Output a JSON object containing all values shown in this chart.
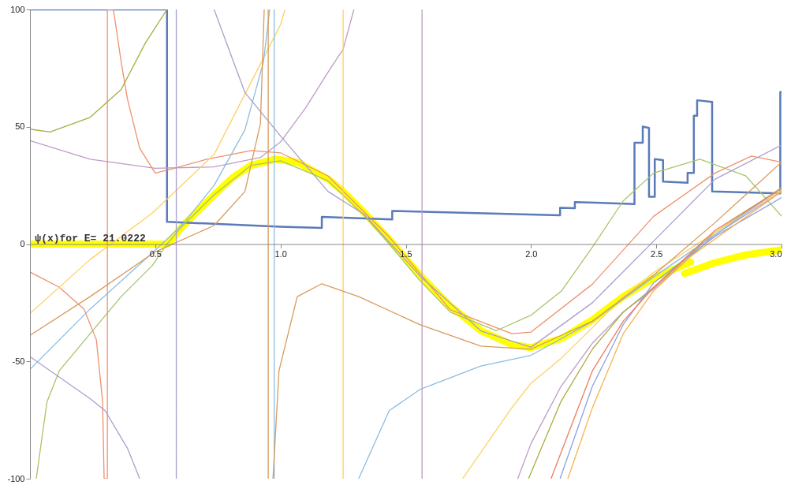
{
  "chart_data": {
    "type": "line",
    "xlim": [
      0,
      3
    ],
    "ylim": [
      -100,
      100
    ],
    "xticks": [
      0.5,
      {
        "value": 1,
        "label": "1.0"
      },
      1.5,
      {
        "value": 2,
        "label": "2.0"
      },
      2.5,
      {
        "value": 3,
        "label": "3.0"
      }
    ],
    "yticks": [
      -100,
      -50,
      0,
      50,
      100
    ],
    "grid": false,
    "annotations": [
      {
        "text": "ψ(x)for E= 21.0222",
        "x": 0.02,
        "y": 0
      }
    ],
    "series": [
      {
        "color": "#ffff00",
        "x": [
          0,
          0.547,
          0.562,
          0.611,
          0.673,
          0.735,
          0.809,
          0.883,
          0.98,
          1.067,
          1.19,
          1.25,
          1.336,
          1.434,
          1.556,
          1.678,
          1.8,
          1.923,
          2.0,
          2.123,
          2.245,
          2.368,
          2.49,
          2.637
        ],
        "values": [
          0,
          0,
          1.3,
          7.9,
          14.5,
          21,
          28.3,
          33.6,
          36.2,
          34.9,
          27.7,
          22.4,
          13.2,
          2,
          -13.2,
          -26.4,
          -36.9,
          -42.8,
          -44.1,
          -40.2,
          -32.3,
          -22.4,
          -14.5,
          -7.6
        ]
      },
      {
        "color": "#ffff00",
        "x": [
          2.613,
          2.735,
          2.858,
          3.0
        ],
        "values": [
          -12.5,
          -7.9,
          -4.6,
          -2.4
        ]
      },
      {
        "color": "#5a7bb8",
        "x": [
          0,
          0.547,
          0.547,
          1.0,
          1.165,
          1.165,
          1.446,
          1.446,
          2.116,
          2.116,
          2.175,
          2.175,
          2.413,
          2.413,
          2.446,
          2.446,
          2.471,
          2.471,
          2.494,
          2.494,
          2.527,
          2.527,
          2.625,
          2.625,
          2.65,
          2.65,
          2.663,
          2.663,
          2.723,
          2.723,
          2.995,
          2.995,
          3.0
        ],
        "values": [
          100,
          100,
          9.5,
          7.4,
          6.9,
          11.6,
          10.5,
          14.1,
          12.3,
          15.5,
          15.3,
          17.9,
          17.1,
          43.2,
          43.2,
          50.1,
          49.5,
          20.2,
          20.2,
          36.2,
          35.8,
          26.6,
          26.1,
          30.3,
          30.3,
          54.7,
          54.7,
          61.3,
          60.6,
          22.4,
          21.6,
          64.8,
          64.8
        ]
      },
      {
        "color": "#f0906c",
        "x": [
          0,
          0.117,
          0.216,
          0.265,
          0.29,
          0.296,
          0.309,
          0.309,
          0.333,
          0.364,
          0.389,
          0.438,
          0.5,
          0.562,
          0.7,
          0.883,
          1.0,
          1.19,
          1.434,
          1.678,
          1.923,
          2.0,
          2.245,
          2.49,
          2.735,
          2.88,
          3.0
        ],
        "values": [
          -11.9,
          -18.4,
          -27.7,
          -40.8,
          -67.2,
          -100,
          -100,
          100,
          100,
          77.7,
          61.9,
          40.8,
          30.3,
          31.9,
          36,
          39.9,
          38.9,
          29,
          3,
          -28,
          -38.2,
          -37.5,
          -17.1,
          11.9,
          30.3,
          37.5,
          34.9
        ]
      },
      {
        "color": "#c09ac8",
        "x": [
          0,
          0.24,
          0.5,
          0.735,
          0.92,
          1.0,
          1.1,
          1.2,
          1.25,
          1.293,
          1.4,
          1.565,
          1.565,
          1.7,
          1.947,
          2.0,
          2.12,
          2.245,
          2.368,
          2.49,
          2.735,
          3.0
        ],
        "values": [
          44.1,
          36.2,
          32.3,
          32.9,
          36.9,
          43.5,
          58,
          75,
          83,
          100,
          null,
          100,
          -100,
          null,
          -100,
          -85,
          -60.6,
          -42.2,
          -29,
          -19.1,
          4,
          22.4
        ]
      },
      {
        "color": "#a8ad40",
        "x": [
          0,
          0.08,
          0.24,
          0.364,
          0.46,
          0.547,
          1.5,
          1.99,
          2.12,
          2.245,
          2.368,
          2.49,
          2.735,
          3.0
        ],
        "values": [
          49,
          47.8,
          54,
          65.9,
          85.6,
          100,
          null,
          -100,
          -67,
          -44.8,
          -29,
          -18.4,
          5,
          24
        ]
      },
      {
        "color": "#a8c46a",
        "x": [
          0.025,
          0.068,
          0.117,
          0.24,
          0.364,
          0.488,
          0.547,
          0.611,
          0.735,
          0.883,
          1.0,
          1.19,
          1.336,
          1.434,
          1.556,
          1.678,
          1.862,
          2.0,
          2.123,
          2.245,
          2.368,
          2.49,
          2.674,
          2.858,
          3.0
        ],
        "values": [
          -100,
          -67.2,
          -54,
          -38.2,
          -22.4,
          -9.2,
          0,
          8,
          21,
          33.6,
          35.5,
          27,
          12,
          0,
          -15.5,
          -29,
          -36.9,
          -30.3,
          -19.8,
          -1.3,
          18.4,
          30.3,
          36.2,
          29,
          11.9
        ]
      },
      {
        "color": "#ffd060",
        "x": [
          0,
          0.24,
          0.488,
          0.735,
          1.0,
          1.018,
          1.1,
          1.25,
          1.25,
          1.5,
          1.727,
          1.923,
          2.0,
          2.12,
          2.245,
          2.368,
          2.49,
          2.735,
          3.0
        ],
        "values": [
          -29.6,
          -6.6,
          13.2,
          38.2,
          93.5,
          100,
          null,
          100,
          -100,
          null,
          -100,
          -69.8,
          -59.3,
          -48.7,
          -35.6,
          -22.4,
          -12,
          5,
          23
        ]
      },
      {
        "color": "#8dbde0",
        "x": [
          0,
          0.24,
          0.5,
          0.611,
          0.735,
          0.858,
          0.932,
          0.957,
          0.966,
          0.975,
          0.975,
          1.1,
          1.312,
          1.434,
          1.556,
          1.8,
          2.0,
          2.245,
          2.49,
          2.735,
          3.0
        ],
        "values": [
          -53.4,
          -27.7,
          -2.6,
          8.6,
          25,
          48.7,
          77.7,
          100,
          null,
          100,
          -100,
          null,
          -100,
          -71,
          -62,
          -52,
          -47.4,
          -33,
          -14,
          4,
          24
        ]
      },
      {
        "color": "#d89a5a",
        "x": [
          0,
          0.24,
          0.5,
          0.735,
          0.858,
          0.92,
          0.935,
          0.943,
          0.951,
          0.951,
          0.96,
          0.97,
          0.994,
          1.067,
          1.165,
          1.312,
          1.556,
          1.8,
          2.0,
          2.245,
          2.49,
          2.735,
          3.0
        ],
        "values": [
          -38.9,
          -22.4,
          -3.3,
          7.9,
          22.4,
          51.4,
          100,
          null,
          100,
          -100,
          null,
          -100,
          -54,
          -22.4,
          -16.9,
          -22.4,
          -34.3,
          -43.5,
          -44.8,
          -32.9,
          -13.2,
          9.2,
          34.9
        ]
      },
      {
        "color": "#a99fcc",
        "x": [
          0,
          0.24,
          0.3,
          0.389,
          0.438,
          0.5,
          0.584,
          0.584,
          0.65,
          0.735,
          0.858,
          1.0,
          1.19,
          1.336,
          1.556,
          1.8,
          2.0,
          2.245,
          2.49,
          2.735,
          3.0
        ],
        "values": [
          -48,
          -65.9,
          -71,
          -87,
          -100,
          null,
          -100,
          100,
          null,
          100,
          64.6,
          46.1,
          22.4,
          12.5,
          -13.5,
          -37,
          -44,
          -25,
          1.3,
          27.7,
          42.2
        ]
      },
      {
        "color": "#8aa2e4",
        "x": [
          2.116,
          2.245,
          2.368,
          2.49,
          2.613,
          2.735,
          3.0
        ],
        "values": [
          -100,
          -60.6,
          -34.3,
          -16.5,
          -6.6,
          3.3,
          19.8
        ]
      },
      {
        "color": "#f7b24a",
        "x": [
          2.147,
          2.245,
          2.368,
          2.49,
          2.637,
          3.0
        ],
        "values": [
          -100,
          -69.8,
          -38.2,
          -19.8,
          -5.3,
          22.4
        ]
      },
      {
        "color": "#ee7c5a",
        "x": [
          2.08,
          2.245,
          2.368,
          2.49,
          2.735,
          3.0
        ],
        "values": [
          -100,
          -54,
          -32.9,
          -18.4,
          5.9,
          23.7
        ]
      }
    ]
  }
}
